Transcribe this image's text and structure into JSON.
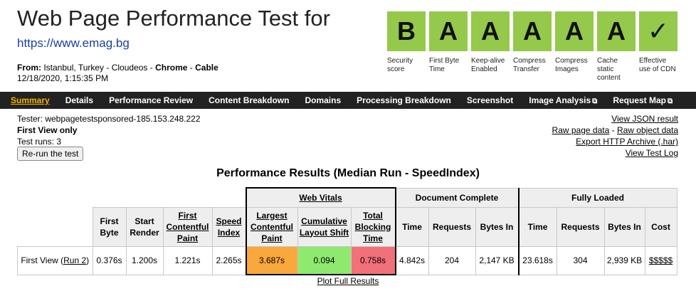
{
  "header": {
    "title": "Web Page Performance Test for",
    "url": "https://www.emag.bg",
    "from_label": "From:",
    "from_location": "Istanbul, Turkey - Cloudeos - ",
    "browser": "Chrome",
    "sep": " - ",
    "connection": "Cable",
    "datetime": "12/18/2020, 1:15:35 PM"
  },
  "grades": [
    {
      "grade": "B",
      "label": "Security score"
    },
    {
      "grade": "A",
      "label": "First Byte Time"
    },
    {
      "grade": "A",
      "label": "Keep-alive Enabled"
    },
    {
      "grade": "A",
      "label": "Compress Transfer"
    },
    {
      "grade": "A",
      "label": "Compress Images"
    },
    {
      "grade": "A",
      "label": "Cache static content"
    },
    {
      "grade": "✓",
      "label": "Effective use of CDN"
    }
  ],
  "nav": {
    "summary": "Summary",
    "details": "Details",
    "performance_review": "Performance Review",
    "content_breakdown": "Content Breakdown",
    "domains": "Domains",
    "processing_breakdown": "Processing Breakdown",
    "screenshot": "Screenshot",
    "image_analysis": "Image Analysis",
    "request_map": "Request Map",
    "external_icon": "⧉"
  },
  "meta": {
    "tester": "Tester: webpagetestsponsored-185.153.248.222",
    "view": "First View only",
    "runs": "Test runs: 3",
    "rerun": "Re-run the test"
  },
  "links": {
    "json": "View JSON result",
    "raw_page": "Raw page data",
    "dash": " - ",
    "raw_object": "Raw object data",
    "har": "Export HTTP Archive (.har)",
    "log": "View Test Log"
  },
  "results": {
    "title": "Performance Results (Median Run - SpeedIndex)",
    "groups": {
      "web_vitals": "Web Vitals",
      "doc_complete": "Document Complete",
      "fully_loaded": "Fully Loaded"
    },
    "columns": {
      "first_byte": "First Byte",
      "start_render": "Start Render",
      "fcp": "First Contentful Paint",
      "speed_index": "Speed Index",
      "lcp": "Largest Contentful Paint",
      "cls": "Cumulative Layout Shift",
      "tbt": "Total Blocking Time",
      "dc_time": "Time",
      "dc_requests": "Requests",
      "dc_bytes": "Bytes In",
      "fl_time": "Time",
      "fl_requests": "Requests",
      "fl_bytes": "Bytes In",
      "cost": "Cost"
    },
    "row": {
      "label": "First View (",
      "run_link": "Run 2",
      "label_end": ")",
      "first_byte": "0.376s",
      "start_render": "1.200s",
      "fcp": "1.221s",
      "speed_index": "2.265s",
      "lcp": "3.687s",
      "cls": "0.094",
      "tbt": "0.758s",
      "dc_time": "4.842s",
      "dc_requests": "204",
      "dc_bytes": "2,147 KB",
      "fl_time": "23.618s",
      "fl_requests": "304",
      "fl_bytes": "2,939 KB",
      "cost": "$$$$$"
    },
    "plot_link": "Plot Full Results"
  },
  "colors": {
    "grade_green": "#94c94b",
    "nav_bg": "#222222",
    "active_tab": "#f5b400",
    "lcp": "#f9a83b",
    "cls": "#8ee96e",
    "tbt": "#f2707a",
    "url": "#1a3da8"
  }
}
